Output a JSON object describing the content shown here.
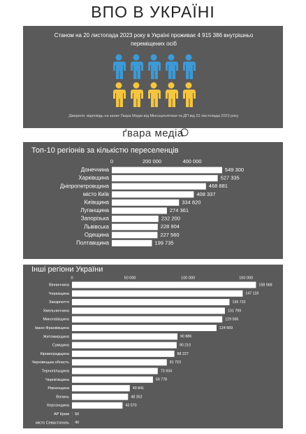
{
  "header": {
    "title": "ВПО В УКРАЇНІ",
    "intro": "Станом на 20 листопада 2023 року в Україні проживає 4 915 386 внутрішньо переміщених осіб",
    "source": "Джерело: відповідь на запит Ґвара Медіа від Мінсоцполітики та ДП від 22 листопада 2023 року",
    "logo": "ґвара медіа"
  },
  "chart_data": [
    {
      "type": "bar",
      "orientation": "horizontal",
      "title": "Топ-10 регіонів за кількістю переселенців",
      "categories": [
        "Донеччина",
        "Харківщина",
        "Дніпропетровщина",
        "місто Київ",
        "Київщина",
        "Луганщина",
        "Запорізька",
        "Львівська",
        "Одещина",
        "Полтавщина"
      ],
      "values": [
        549300,
        527335,
        468881,
        408337,
        334820,
        274361,
        232200,
        228904,
        227560,
        199735
      ],
      "value_labels": [
        "549 300",
        "527 335",
        "468 881",
        "408 337",
        "334 820",
        "274 361",
        "232 200",
        "228 904",
        "227 560",
        "199 735"
      ],
      "color": "#ffffff",
      "xlim": [
        0,
        800000
      ],
      "xticks": [
        0,
        {
          "value": 200000,
          "label": "200 000"
        },
        {
          "value": 400000,
          "label": "400 000"
        }
      ],
      "grid": false
    },
    {
      "type": "bar",
      "orientation": "horizontal",
      "title": "Інші регіони України",
      "categories": [
        "Вінниччина",
        "Черкащина",
        "Закарпаття",
        "Хмельниччина",
        "Миколаївщина",
        "Івано-Франківщина",
        "Житомирщина",
        "Сумщина",
        "Кіровоградщина",
        "Чернівецька область",
        "Тернопільщина",
        "Чернігівщина",
        "Рівненщина",
        "Волинь",
        "Херсонщина",
        "АР Крим",
        "місто Севастополь"
      ],
      "values": [
        158568,
        147118,
        135722,
        131799,
        129566,
        124569,
        90886,
        90210,
        88227,
        81723,
        73934,
        69778,
        49841,
        48352,
        43570,
        50,
        40
      ],
      "value_labels": [
        "158 568",
        "147 118",
        "135 722",
        "131 799",
        "129 566",
        "124 569",
        "90 886",
        "90 210",
        "88 227",
        "81 723",
        "73 934",
        "69 778",
        "49 841",
        "48 352",
        "43 570",
        "50",
        "40"
      ],
      "color": "#ffffff",
      "xlim": [
        0,
        180000
      ],
      "xticks": [
        0,
        {
          "value": 50000,
          "label": "50 000"
        },
        {
          "value": 100000,
          "label": "100 000"
        },
        {
          "value": 150000,
          "label": "150 000"
        }
      ],
      "grid": false
    }
  ]
}
